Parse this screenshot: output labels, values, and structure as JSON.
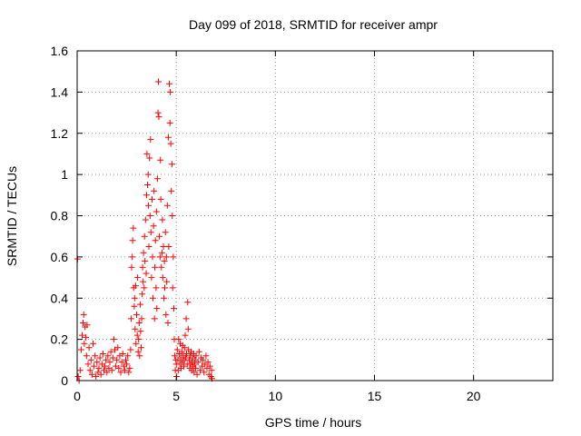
{
  "chart_data": {
    "type": "scatter",
    "title": "Day 099 of 2018, SRMTID for receiver ampr",
    "xlabel": "GPS time / hours",
    "ylabel": "SRMTID / TECUs",
    "xlim": [
      0,
      24
    ],
    "ylim": [
      0,
      1.6
    ],
    "xticks": [
      0,
      5,
      10,
      15,
      20
    ],
    "xtick_labels": [
      "0",
      "5",
      "10",
      "15",
      "20"
    ],
    "yticks": [
      0,
      0.2,
      0.4,
      0.6,
      0.8,
      1,
      1.2,
      1.4,
      1.6
    ],
    "ytick_labels": [
      "0",
      "0.2",
      "0.4",
      "0.6",
      "0.8",
      "1",
      "1.2",
      "1.4",
      "1.6"
    ],
    "grid": true,
    "marker": "plus",
    "series_color": "#ff0000",
    "series": [
      {
        "values": [
          [
            0.02,
            0.59
          ],
          [
            0.05,
            0.02
          ],
          [
            0.1,
            0.0
          ],
          [
            0.15,
            0.05
          ],
          [
            0.2,
            0.15
          ],
          [
            0.25,
            0.22
          ],
          [
            0.3,
            0.28
          ],
          [
            0.33,
            0.32
          ],
          [
            0.36,
            0.18
          ],
          [
            0.4,
            0.26
          ],
          [
            0.44,
            0.21
          ],
          [
            0.47,
            0.12
          ],
          [
            0.5,
            0.27
          ],
          [
            0.55,
            0.08
          ],
          [
            0.6,
            0.16
          ],
          [
            0.65,
            0.05
          ],
          [
            0.7,
            0.1
          ],
          [
            0.75,
            0.03
          ],
          [
            0.8,
            0.18
          ],
          [
            0.85,
            0.07
          ],
          [
            0.9,
            0.12
          ],
          [
            0.95,
            0.02
          ],
          [
            1.0,
            0.09
          ],
          [
            1.05,
            0.04
          ],
          [
            1.1,
            0.06
          ],
          [
            1.15,
            0.11
          ],
          [
            1.2,
            0.03
          ],
          [
            1.25,
            0.08
          ],
          [
            1.3,
            0.13
          ],
          [
            1.35,
            0.05
          ],
          [
            1.4,
            0.07
          ],
          [
            1.45,
            0.1
          ],
          [
            1.5,
            0.04
          ],
          [
            1.55,
            0.12
          ],
          [
            1.6,
            0.06
          ],
          [
            1.65,
            0.09
          ],
          [
            1.7,
            0.14
          ],
          [
            1.75,
            0.05
          ],
          [
            1.8,
            0.11
          ],
          [
            1.85,
            0.2
          ],
          [
            1.9,
            0.15
          ],
          [
            1.95,
            0.07
          ],
          [
            2.0,
            0.1
          ],
          [
            2.05,
            0.16
          ],
          [
            2.1,
            0.06
          ],
          [
            2.15,
            0.12
          ],
          [
            2.2,
            0.04
          ],
          [
            2.25,
            0.09
          ],
          [
            2.3,
            0.13
          ],
          [
            2.35,
            0.07
          ],
          [
            2.4,
            0.05
          ],
          [
            2.45,
            0.1
          ],
          [
            2.5,
            0.08
          ],
          [
            2.55,
            0.12
          ],
          [
            2.6,
            0.04
          ],
          [
            2.65,
            0.06
          ],
          [
            2.7,
            0.15
          ],
          [
            2.72,
            0.3
          ],
          [
            2.75,
            0.55
          ],
          [
            2.78,
            0.6
          ],
          [
            2.8,
            0.68
          ],
          [
            2.83,
            0.74
          ],
          [
            2.85,
            0.45
          ],
          [
            2.88,
            0.36
          ],
          [
            2.9,
            0.4
          ],
          [
            2.92,
            0.25
          ],
          [
            2.95,
            0.46
          ],
          [
            2.97,
            0.18
          ],
          [
            3.0,
            0.32
          ],
          [
            3.03,
            0.22
          ],
          [
            3.05,
            0.5
          ],
          [
            3.08,
            0.14
          ],
          [
            3.1,
            0.2
          ],
          [
            3.13,
            0.28
          ],
          [
            3.15,
            0.12
          ],
          [
            3.18,
            0.37
          ],
          [
            3.2,
            0.24
          ],
          [
            3.23,
            0.16
          ],
          [
            3.25,
            0.3
          ],
          [
            3.28,
            0.42
          ],
          [
            3.3,
            0.55
          ],
          [
            3.33,
            0.48
          ],
          [
            3.35,
            0.62
          ],
          [
            3.38,
            0.45
          ],
          [
            3.4,
            0.7
          ],
          [
            3.42,
            0.58
          ],
          [
            3.45,
            0.78
          ],
          [
            3.48,
            0.52
          ],
          [
            3.5,
            0.9
          ],
          [
            3.52,
            1.1
          ],
          [
            3.55,
            0.95
          ],
          [
            3.58,
            1.0
          ],
          [
            3.6,
            0.85
          ],
          [
            3.62,
            0.65
          ],
          [
            3.65,
            1.08
          ],
          [
            3.68,
            0.8
          ],
          [
            3.7,
            1.17
          ],
          [
            3.72,
            0.72
          ],
          [
            3.75,
            0.5
          ],
          [
            3.78,
            0.88
          ],
          [
            3.8,
            0.6
          ],
          [
            3.82,
            0.4
          ],
          [
            3.85,
            0.75
          ],
          [
            3.88,
            0.92
          ],
          [
            3.9,
            0.3
          ],
          [
            3.92,
            0.55
          ],
          [
            3.95,
            0.68
          ],
          [
            3.98,
            0.45
          ],
          [
            4.0,
            0.82
          ],
          [
            4.02,
            0.35
          ],
          [
            4.05,
            0.98
          ],
          [
            4.08,
            1.3
          ],
          [
            4.1,
            1.45
          ],
          [
            4.12,
            1.28
          ],
          [
            4.15,
            0.7
          ],
          [
            4.18,
            0.6
          ],
          [
            4.2,
            1.07
          ],
          [
            4.22,
            0.88
          ],
          [
            4.25,
            0.55
          ],
          [
            4.28,
            0.62
          ],
          [
            4.3,
            0.78
          ],
          [
            4.32,
            0.5
          ],
          [
            4.35,
            0.65
          ],
          [
            4.38,
            0.4
          ],
          [
            4.4,
            0.58
          ],
          [
            4.42,
            0.45
          ],
          [
            4.45,
            0.72
          ],
          [
            4.48,
            0.32
          ],
          [
            4.5,
            0.6
          ],
          [
            4.52,
            0.48
          ],
          [
            4.55,
            0.85
          ],
          [
            4.58,
            0.28
          ],
          [
            4.6,
            1.18
          ],
          [
            4.62,
            0.65
          ],
          [
            4.65,
            1.44
          ],
          [
            4.68,
            1.25
          ],
          [
            4.7,
            1.4
          ],
          [
            4.72,
            1.15
          ],
          [
            4.75,
            0.92
          ],
          [
            4.78,
            1.05
          ],
          [
            4.8,
            0.8
          ],
          [
            4.82,
            0.45
          ],
          [
            4.85,
            0.6
          ],
          [
            4.88,
            0.35
          ],
          [
            4.9,
            0.2
          ],
          [
            4.92,
            0.12
          ],
          [
            4.95,
            0.05
          ],
          [
            4.98,
            0.1
          ],
          [
            5.0,
            0.08
          ],
          [
            5.02,
            0.02
          ],
          [
            5.05,
            0.15
          ],
          [
            5.08,
            0.1
          ],
          [
            5.1,
            0.05
          ],
          [
            5.12,
            0.2
          ],
          [
            5.15,
            0.13
          ],
          [
            5.18,
            0.08
          ],
          [
            5.2,
            0.18
          ],
          [
            5.22,
            0.11
          ],
          [
            5.25,
            0.06
          ],
          [
            5.28,
            0.14
          ],
          [
            5.3,
            0.09
          ],
          [
            5.32,
            0.17
          ],
          [
            5.35,
            0.12
          ],
          [
            5.38,
            0.07
          ],
          [
            5.4,
            0.1
          ],
          [
            5.42,
            0.16
          ],
          [
            5.45,
            0.22
          ],
          [
            5.48,
            0.11
          ],
          [
            5.5,
            0.3
          ],
          [
            5.52,
            0.13
          ],
          [
            5.55,
            0.08
          ],
          [
            5.58,
            0.38
          ],
          [
            5.6,
            0.25
          ],
          [
            5.62,
            0.15
          ],
          [
            5.65,
            0.1
          ],
          [
            5.68,
            0.06
          ],
          [
            5.7,
            0.12
          ],
          [
            5.72,
            0.08
          ],
          [
            5.75,
            0.14
          ],
          [
            5.78,
            0.05
          ],
          [
            5.8,
            0.09
          ],
          [
            5.82,
            0.11
          ],
          [
            5.85,
            0.07
          ],
          [
            5.88,
            0.13
          ],
          [
            5.9,
            0.04
          ],
          [
            5.92,
            0.08
          ],
          [
            5.95,
            0.1
          ],
          [
            5.98,
            0.06
          ],
          [
            6.0,
            0.12
          ],
          [
            6.05,
            0.03
          ],
          [
            6.1,
            0.09
          ],
          [
            6.15,
            0.14
          ],
          [
            6.2,
            0.05
          ],
          [
            6.25,
            0.11
          ],
          [
            6.3,
            0.07
          ],
          [
            6.35,
            0.1
          ],
          [
            6.4,
            0.04
          ],
          [
            6.45,
            0.08
          ],
          [
            6.5,
            0.12
          ],
          [
            6.55,
            0.06
          ],
          [
            6.6,
            0.09
          ],
          [
            6.65,
            0.03
          ],
          [
            6.7,
            0.07
          ],
          [
            6.75,
            0.02
          ],
          [
            6.78,
            0.05
          ],
          [
            6.8,
            0.01
          ]
        ]
      }
    ]
  }
}
